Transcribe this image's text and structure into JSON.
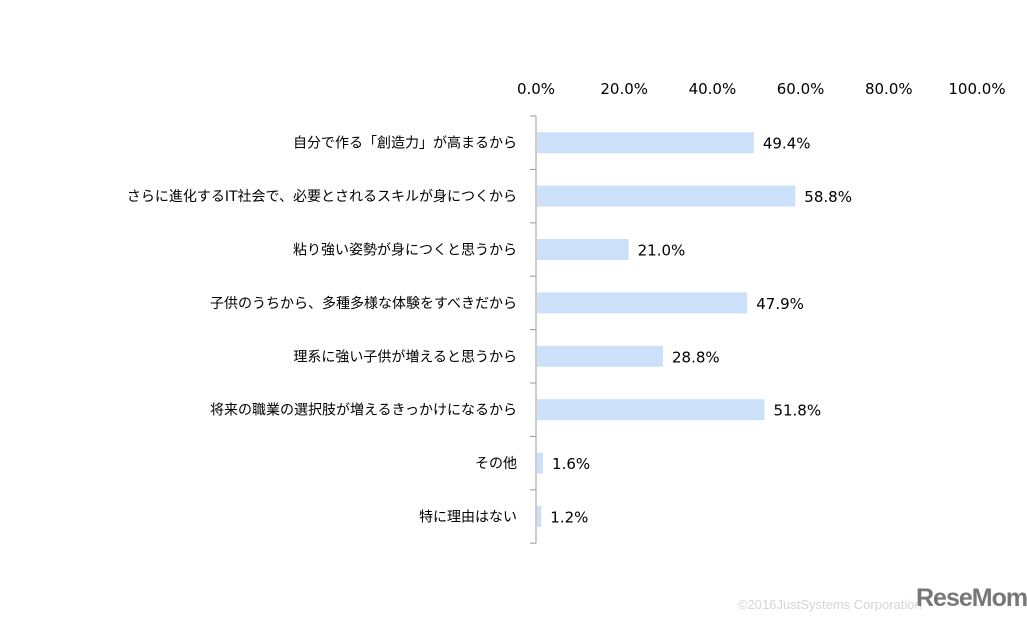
{
  "chart_data": {
    "type": "bar",
    "orientation": "horizontal",
    "categories": [
      "自分で作る「創造力」が高まるから",
      "さらに進化するIT社会で、必要とされるスキルが身につくから",
      "粘り強い姿勢が身につくと思うから",
      "子供のうちから、多種多様な体験をすべきだから",
      "理系に強い子供が増えると思うから",
      "将来の職業の選択肢が増えるきっかけになるから",
      "その他",
      "特に理由はない"
    ],
    "values": [
      49.4,
      58.8,
      21.0,
      47.9,
      28.8,
      51.8,
      1.6,
      1.2
    ],
    "value_labels": [
      "49.4%",
      "58.8%",
      "21.0%",
      "47.9%",
      "28.8%",
      "51.8%",
      "1.6%",
      "1.2%"
    ],
    "xlim": [
      0,
      100
    ],
    "x_ticks": [
      0,
      20,
      40,
      60,
      80,
      100
    ],
    "x_tick_labels": [
      "0.0%",
      "20.0%",
      "40.0%",
      "60.0%",
      "80.0%",
      "100.0%"
    ],
    "x_axis_position": "top",
    "grid": false,
    "bar_color": "#cce0fa"
  },
  "footer": {
    "copyright": "©2016JustSystems Corporation",
    "logo": "ReseMom"
  }
}
